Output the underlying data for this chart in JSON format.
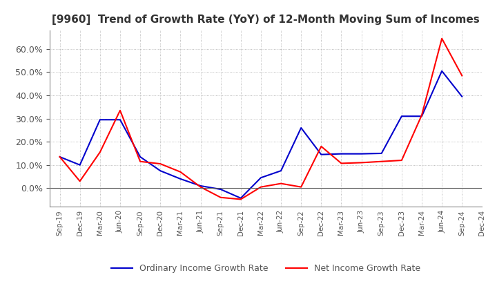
{
  "title": "[9960]  Trend of Growth Rate (YoY) of 12-Month Moving Sum of Incomes",
  "title_fontsize": 11,
  "ylim": [
    -0.08,
    0.68
  ],
  "yticks": [
    0.0,
    0.1,
    0.2,
    0.3,
    0.4,
    0.5,
    0.6
  ],
  "background_color": "#ffffff",
  "grid_color": "#aaaaaa",
  "legend_labels": [
    "Ordinary Income Growth Rate",
    "Net Income Growth Rate"
  ],
  "legend_colors": [
    "#0000cc",
    "#ff0000"
  ],
  "x_labels": [
    "Sep-19",
    "Dec-19",
    "Mar-20",
    "Jun-20",
    "Sep-20",
    "Dec-20",
    "Mar-21",
    "Jun-21",
    "Sep-21",
    "Dec-21",
    "Mar-22",
    "Jun-22",
    "Sep-22",
    "Dec-22",
    "Mar-23",
    "Jun-23",
    "Sep-23",
    "Dec-23",
    "Mar-24",
    "Jun-24",
    "Sep-24",
    "Dec-24"
  ],
  "ordinary_income": [
    0.135,
    0.1,
    0.295,
    0.295,
    0.135,
    0.075,
    0.04,
    0.01,
    -0.005,
    -0.043,
    0.045,
    0.075,
    0.26,
    0.145,
    0.148,
    0.148,
    0.15,
    0.31,
    0.31,
    0.505,
    0.395,
    null
  ],
  "net_income": [
    0.135,
    0.03,
    0.155,
    0.335,
    0.115,
    0.105,
    0.07,
    0.005,
    -0.04,
    -0.048,
    0.005,
    0.02,
    0.005,
    0.18,
    0.107,
    0.11,
    0.115,
    0.12,
    0.315,
    0.645,
    0.485,
    null
  ]
}
